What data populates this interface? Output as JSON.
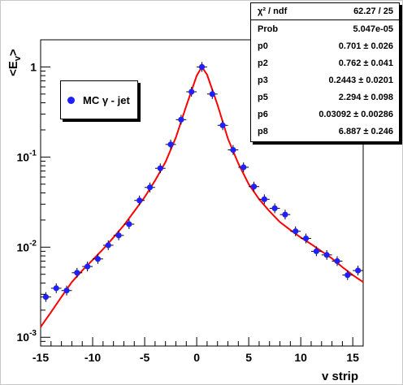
{
  "chart_data": {
    "type": "scatter",
    "xlabel": "v strip",
    "ylabel": "<E_v>",
    "xlim": [
      -15,
      16
    ],
    "ylim": [
      0.0008,
      2
    ],
    "yscale": "log",
    "x_ticks": [
      "-15",
      "-10",
      "-5",
      "0",
      "5",
      "10",
      "15"
    ],
    "y_ticks": [
      {
        "base": "10",
        "exp": "-3",
        "value": 0.001
      },
      {
        "base": "10",
        "exp": "-2",
        "value": 0.01
      },
      {
        "base": "10",
        "exp": "-1",
        "value": 0.1
      },
      {
        "base": "1",
        "exp": "",
        "value": 1
      }
    ],
    "series": [
      {
        "name": "MC γ - jet",
        "marker_color": "#1f1fff",
        "x": [
          -14.5,
          -13.5,
          -12.5,
          -11.5,
          -10.5,
          -9.5,
          -8.5,
          -7.5,
          -6.5,
          -5.5,
          -4.5,
          -3.5,
          -2.5,
          -1.5,
          -0.5,
          0.5,
          1.5,
          2.5,
          3.5,
          4.5,
          5.5,
          6.5,
          7.5,
          8.5,
          9.5,
          10.5,
          11.5,
          12.5,
          13.5,
          14.5,
          15.5
        ],
        "y": [
          0.0028,
          0.0035,
          0.0033,
          0.0052,
          0.0061,
          0.0074,
          0.0105,
          0.0135,
          0.018,
          0.033,
          0.046,
          0.075,
          0.138,
          0.26,
          0.53,
          1.0,
          0.5,
          0.225,
          0.12,
          0.077,
          0.047,
          0.034,
          0.027,
          0.023,
          0.015,
          0.0125,
          0.009,
          0.0082,
          0.007,
          0.0049,
          0.0055
        ]
      }
    ],
    "fit": {
      "name": "fit",
      "line_color": "#ff0000",
      "x": [
        -15,
        -14,
        -13,
        -12,
        -11,
        -10,
        -9,
        -8,
        -7,
        -6,
        -5,
        -4,
        -3,
        -2,
        -1,
        0,
        0.5,
        1,
        2,
        3,
        4,
        5,
        6,
        7,
        8,
        9,
        10,
        11,
        12,
        13,
        14,
        15,
        16
      ],
      "y": [
        0.0013,
        0.0019,
        0.0028,
        0.0041,
        0.0055,
        0.0072,
        0.0095,
        0.0128,
        0.0175,
        0.025,
        0.036,
        0.055,
        0.088,
        0.165,
        0.37,
        0.8,
        1.0,
        0.82,
        0.38,
        0.16,
        0.085,
        0.05,
        0.034,
        0.025,
        0.019,
        0.0155,
        0.0128,
        0.0108,
        0.009,
        0.0075,
        0.006,
        0.0049,
        0.0041
      ]
    },
    "stats_box": [
      {
        "label": "χ² / ndf",
        "value": "62.27 / 25"
      },
      {
        "label": "Prob",
        "value": "5.047e-05"
      },
      {
        "label": "p0",
        "value": "0.701 ± 0.026"
      },
      {
        "label": "p2",
        "value": "0.762 ± 0.041"
      },
      {
        "label": "p3",
        "value": "0.2443 ± 0.0201"
      },
      {
        "label": "p5",
        "value": "2.294 ± 0.098"
      },
      {
        "label": "p6",
        "value": "0.03092 ± 0.00286"
      },
      {
        "label": "p8",
        "value": "6.887 ± 0.246"
      }
    ],
    "legend_placement": "upper-left",
    "grid": false
  }
}
